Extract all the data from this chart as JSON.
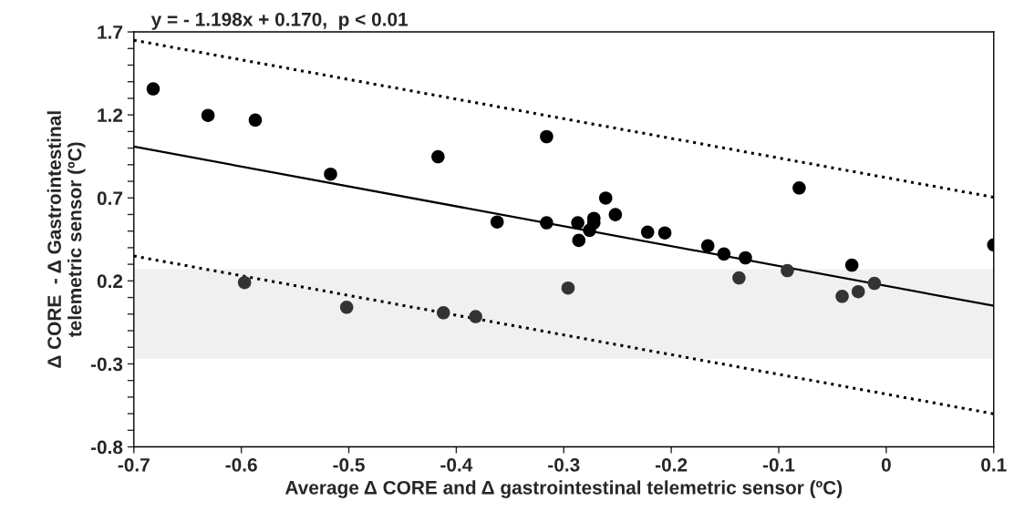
{
  "chart_data": {
    "type": "scatter",
    "xlabel": "Average Δ CORE and Δ gastrointestinal telemetric sensor (ºC)",
    "ylabel": "Δ CORE  - Δ Gastrointestinal\ntelemetric sensor (ºC)",
    "annotations": [
      "y = - 1.198x + 0.170,  p < 0.01"
    ],
    "series": [
      {
        "color": "#000000",
        "marker": "circle",
        "x": [
          -0.682,
          -0.631,
          -0.587,
          -0.517,
          -0.417,
          -0.316,
          -0.362,
          -0.316,
          -0.287,
          -0.286,
          -0.276,
          -0.272,
          -0.272,
          -0.261,
          -0.252,
          -0.222,
          -0.206,
          -0.166,
          -0.151,
          -0.131,
          -0.081,
          -0.032,
          0.1
        ],
        "values": [
          1.357,
          1.197,
          1.169,
          0.843,
          0.948,
          1.069,
          0.555,
          0.55,
          0.55,
          0.444,
          0.505,
          0.577,
          0.55,
          0.699,
          0.599,
          0.494,
          0.489,
          0.411,
          0.362,
          0.339,
          0.76,
          0.295,
          0.417
        ]
      },
      {
        "color": "#333333",
        "marker": "circle",
        "x": [
          -0.597,
          -0.502,
          -0.412,
          -0.382,
          -0.296,
          -0.137,
          -0.092,
          -0.041,
          -0.026,
          -0.011
        ],
        "values": [
          0.19,
          0.041,
          0.008,
          -0.015,
          0.157,
          0.218,
          0.262,
          0.107,
          0.135,
          0.185
        ]
      },
      {
        "type": "line",
        "color": "#000000",
        "line_style": "solid",
        "x": [
          -0.7,
          0.1
        ],
        "values": [
          1.009,
          0.05
        ]
      },
      {
        "type": "line",
        "color": "#000000",
        "line_style": "dotted",
        "x": [
          -0.7,
          0.1
        ],
        "values": [
          1.65,
          0.704
        ]
      },
      {
        "type": "line",
        "color": "#000000",
        "line_style": "dotted",
        "x": [
          -0.7,
          0.1
        ],
        "values": [
          0.35,
          -0.601
        ]
      }
    ],
    "bands": [
      {
        "axis": "y",
        "from": -0.27,
        "to": 0.27,
        "color": "#f0f0f0"
      }
    ],
    "xlim": [
      -0.7,
      0.1
    ],
    "ylim": [
      -0.8,
      1.7
    ],
    "xticks": [
      -0.7,
      -0.6,
      -0.5,
      -0.4,
      -0.3,
      -0.2,
      -0.1,
      0,
      0.1
    ],
    "yticks": [
      -0.8,
      {
        "value": -0.7,
        "label": null
      },
      {
        "value": -0.6,
        "label": null
      },
      {
        "value": -0.5,
        "label": null
      },
      {
        "value": -0.4,
        "label": null
      },
      -0.3,
      {
        "value": -0.2,
        "label": null
      },
      {
        "value": -0.1,
        "label": null
      },
      {
        "value": 0.0,
        "label": null
      },
      {
        "value": 0.1,
        "label": null
      },
      0.2,
      {
        "value": 0.3,
        "label": null
      },
      {
        "value": 0.4,
        "label": null
      },
      {
        "value": 0.5,
        "label": null
      },
      {
        "value": 0.6,
        "label": null
      },
      0.7,
      {
        "value": 0.8,
        "label": null
      },
      {
        "value": 0.9,
        "label": null
      },
      {
        "value": 1.0,
        "label": null
      },
      {
        "value": 1.1,
        "label": null
      },
      1.2,
      {
        "value": 1.3,
        "label": null
      },
      {
        "value": 1.4,
        "label": null
      },
      {
        "value": 1.5,
        "label": null
      },
      {
        "value": 1.6,
        "label": null
      },
      1.7
    ],
    "grid": false,
    "legend": false
  }
}
